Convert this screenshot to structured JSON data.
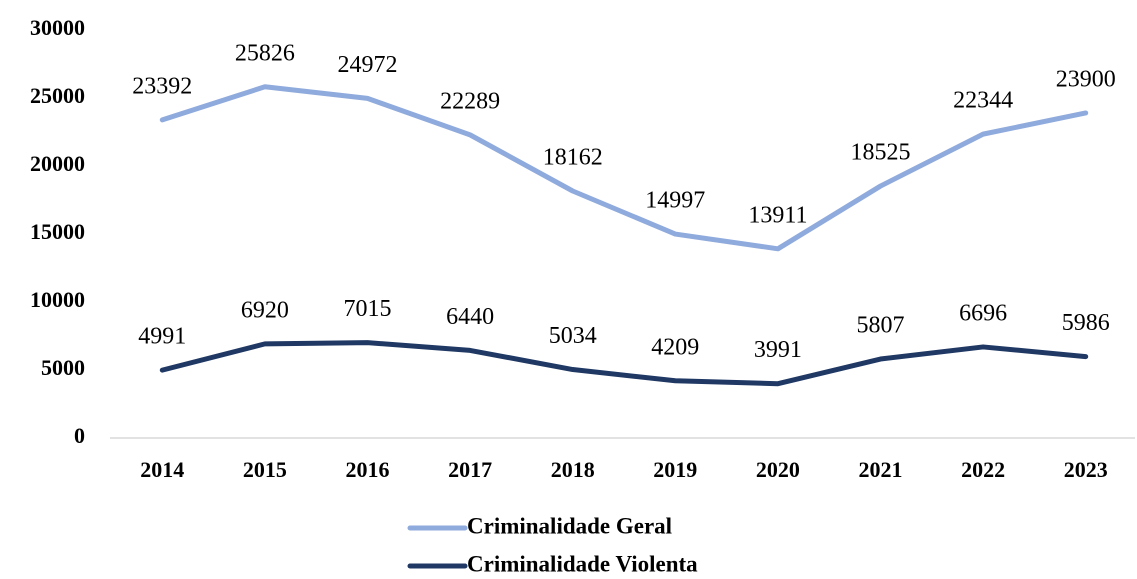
{
  "chart_data": {
    "type": "line",
    "categories": [
      "2014",
      "2015",
      "2016",
      "2017",
      "2018",
      "2019",
      "2020",
      "2021",
      "2022",
      "2023"
    ],
    "series": [
      {
        "name": "Criminalidade Geral",
        "color": "#8faadc",
        "values": [
          23392,
          25826,
          24972,
          22289,
          18162,
          14997,
          13911,
          18525,
          22344,
          23900
        ]
      },
      {
        "name": "Criminalidade Violenta",
        "color": "#1f3864",
        "values": [
          4991,
          6920,
          7015,
          6440,
          5034,
          4209,
          3991,
          5807,
          6696,
          5986
        ]
      }
    ],
    "ylim": [
      0,
      30000
    ],
    "yticks": [
      0,
      5000,
      10000,
      15000,
      20000,
      25000,
      30000
    ],
    "grid": false,
    "legend": "bottom"
  }
}
